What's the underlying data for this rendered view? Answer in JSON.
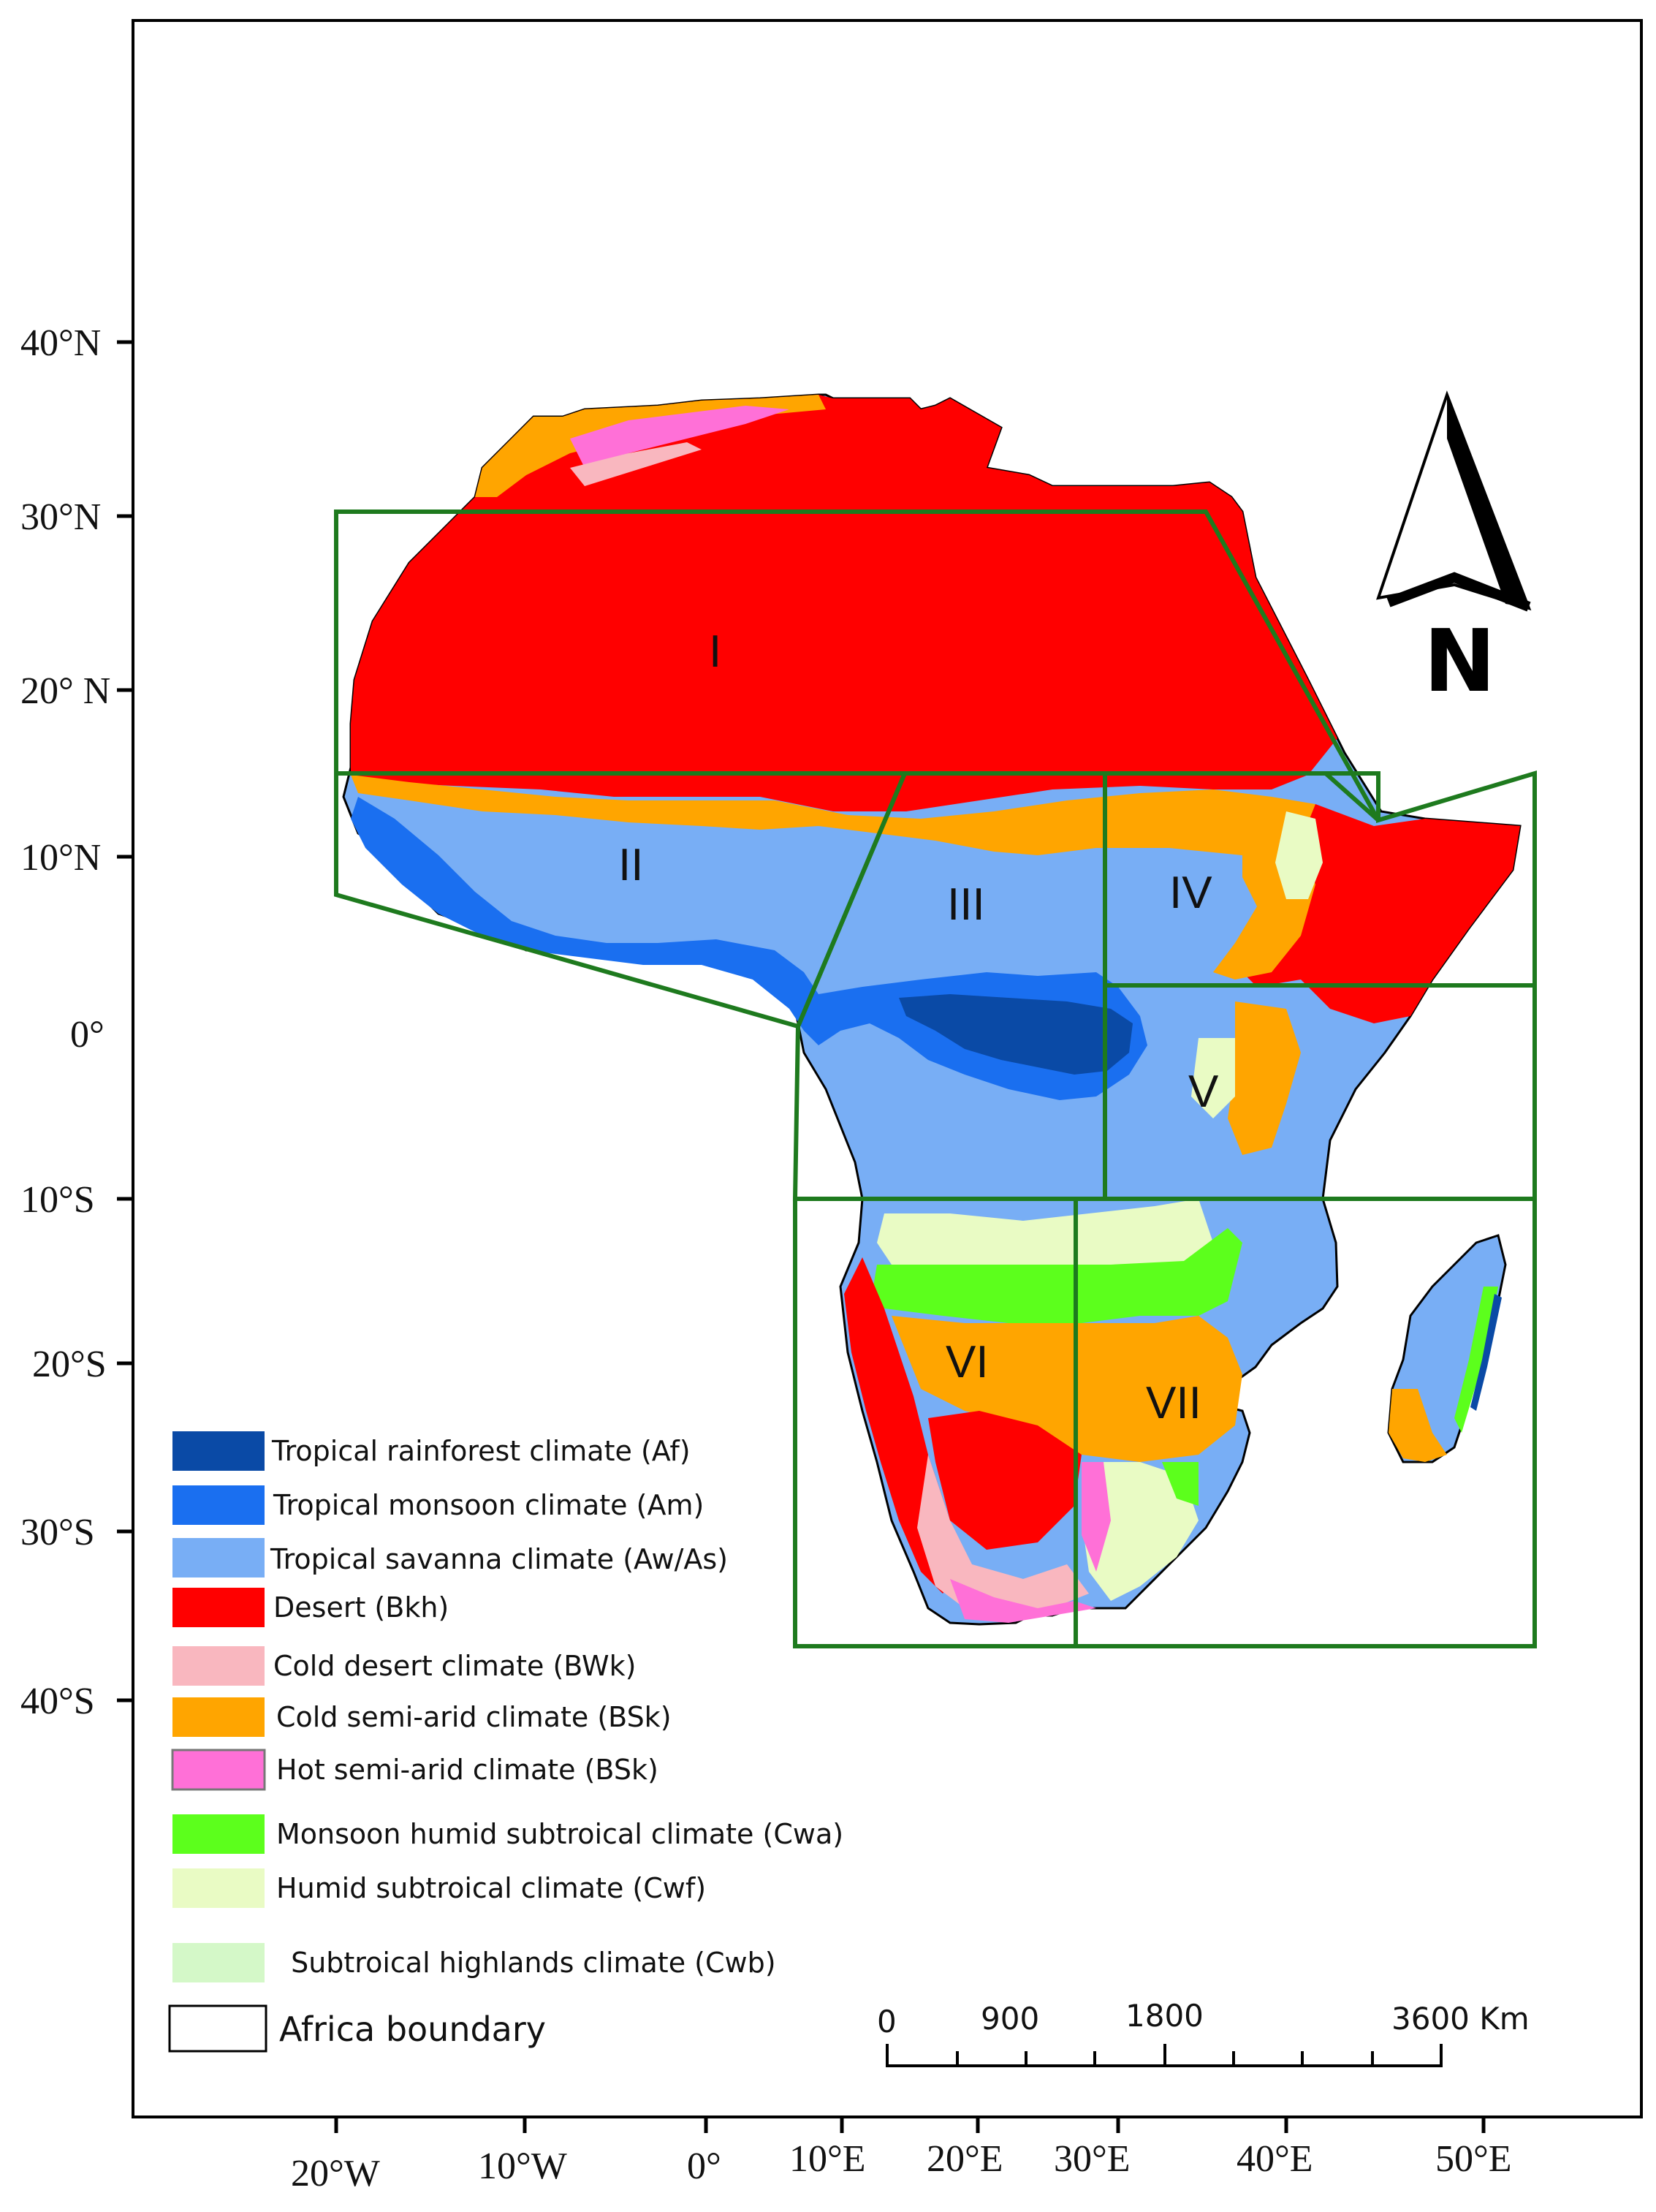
{
  "map": {
    "lat_ticks": [
      "40°N",
      "30°N",
      "20° N",
      "10°N",
      "0°",
      "10°S",
      "20°S",
      "30°S",
      "40°S"
    ],
    "lon_ticks": [
      "20°W",
      "10°W",
      "0°",
      "10°E",
      "20°E",
      "30°E",
      "40°E",
      "50°E"
    ],
    "regions": [
      "I",
      "II",
      "III",
      "IV",
      "V",
      "VI",
      "VII"
    ],
    "north_label": "N",
    "scale": {
      "labels": [
        "0",
        "900",
        "1800",
        "3600 Km"
      ]
    },
    "colors": {
      "frame": "#000000",
      "region_boundary": "#1e7a1e",
      "af": "#0a4aa6",
      "am": "#1a6ff0",
      "aw": "#78aef5",
      "bkh": "#ff0000",
      "bwk": "#f9b7bf",
      "bsk_cold": "#ffa500",
      "bsk_hot": "#ff70d7",
      "cwa": "#5cff1c",
      "cwf": "#e9fbc4",
      "cwb": "#d4f8c8"
    }
  },
  "legend": {
    "items": [
      {
        "label": "Tropical rainforest climate (Af)",
        "color": "#0a4aa6"
      },
      {
        "label": "Tropical monsoon climate (Am)",
        "color": "#1a6ff0"
      },
      {
        "label": "Tropical savanna climate (Aw/As)",
        "color": "#78aef5"
      },
      {
        "label": "Desert  (Bkh)",
        "color": "#ff0000"
      },
      {
        "label": "Cold desert climate (BWk)",
        "color": "#f9b7bf"
      },
      {
        "label": "Cold semi-arid climate (BSk)",
        "color": "#ffa500"
      },
      {
        "label": "Hot semi-arid climate (BSk)",
        "color": "#ff70d7"
      },
      {
        "label": "Monsoon humid subtroical climate (Cwa)",
        "color": "#5cff1c"
      },
      {
        "label": "Humid subtroical climate (Cwf)",
        "color": "#e9fbc4"
      },
      {
        "label": " Subtroical highlands climate (Cwb)",
        "color": "#d4f8c8"
      }
    ],
    "boundary_label": "Africa boundary"
  }
}
